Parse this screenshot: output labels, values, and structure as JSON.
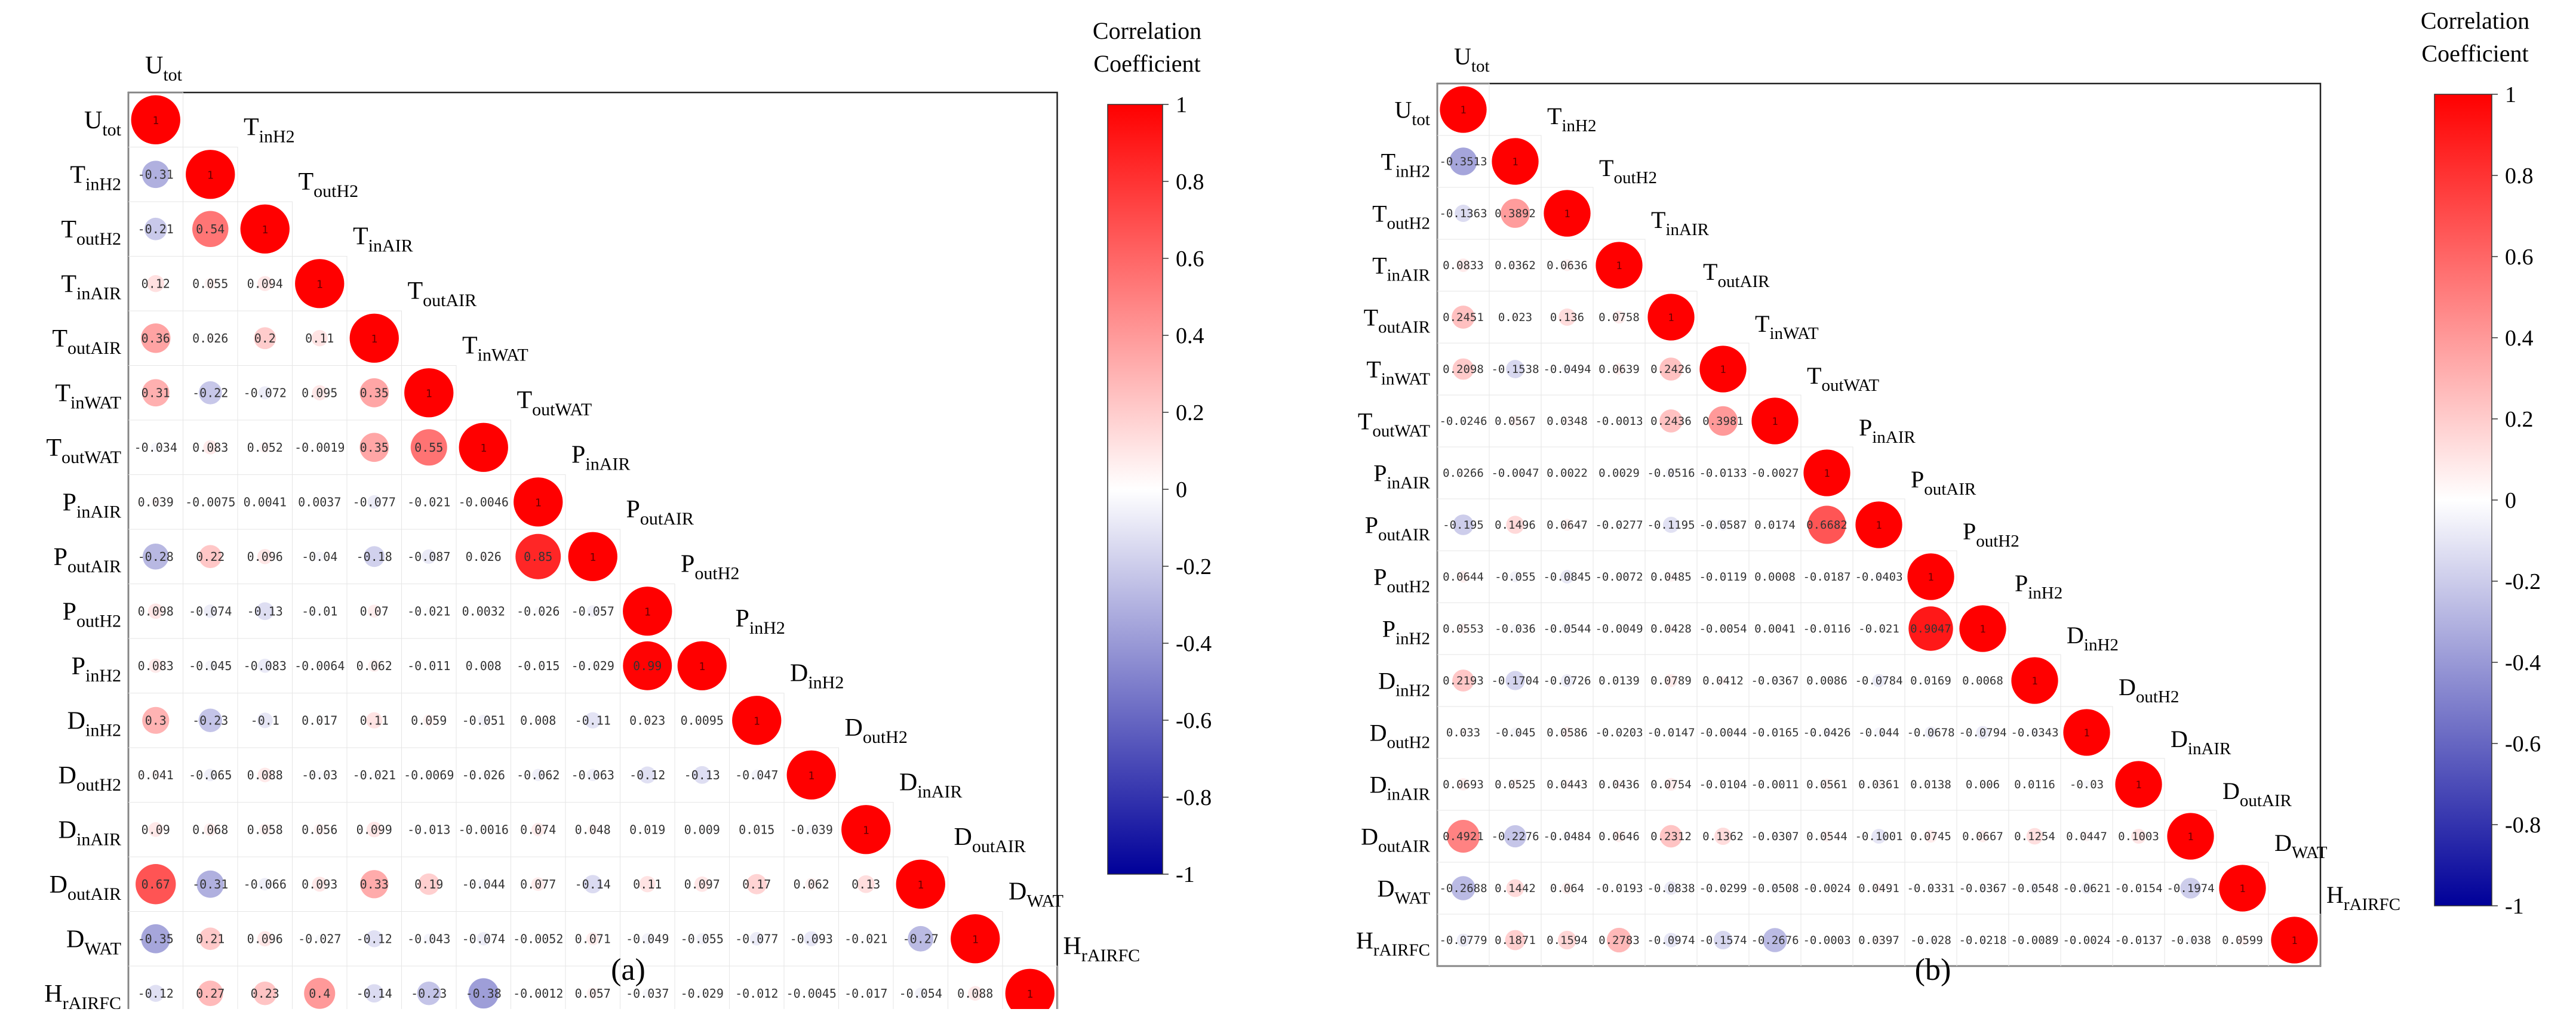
{
  "chart_data": [
    {
      "type": "heatmap",
      "panel_label": "(a)",
      "colorbar_title_line1": "Correlation",
      "colorbar_title_line2": "Coefficient",
      "colorbar_ticks": [
        "1",
        "0.8",
        "0.6",
        "0.4",
        "0.2",
        "0",
        "-0.2",
        "-0.4",
        "-0.6",
        "-0.8",
        "-1"
      ],
      "colorbar_range": [
        -1,
        1
      ],
      "colors": {
        "positive": "#ff0000",
        "zero": "#ffffff",
        "negative": "#000099"
      },
      "variables": [
        {
          "base": "U",
          "sub": "tot"
        },
        {
          "base": "T",
          "sub": "inH2"
        },
        {
          "base": "T",
          "sub": "outH2"
        },
        {
          "base": "T",
          "sub": "inAIR"
        },
        {
          "base": "T",
          "sub": "outAIR"
        },
        {
          "base": "T",
          "sub": "inWAT"
        },
        {
          "base": "T",
          "sub": "outWAT"
        },
        {
          "base": "P",
          "sub": "inAIR"
        },
        {
          "base": "P",
          "sub": "outAIR"
        },
        {
          "base": "P",
          "sub": "outH2"
        },
        {
          "base": "P",
          "sub": "inH2"
        },
        {
          "base": "D",
          "sub": "inH2"
        },
        {
          "base": "D",
          "sub": "outH2"
        },
        {
          "base": "D",
          "sub": "inAIR"
        },
        {
          "base": "D",
          "sub": "outAIR"
        },
        {
          "base": "D",
          "sub": "WAT"
        },
        {
          "base": "H",
          "sub": "rAIRFC"
        }
      ],
      "diagonal_label": "1",
      "matrix": [
        [
          "-0.31"
        ],
        [
          "-0.21",
          "0.54"
        ],
        [
          "0.12",
          "0.055",
          "0.094"
        ],
        [
          "0.36",
          "0.026",
          "0.2",
          "0.11"
        ],
        [
          "0.31",
          "-0.22",
          "-0.072",
          "0.095",
          "0.35"
        ],
        [
          "-0.034",
          "0.083",
          "0.052",
          "-0.0019",
          "0.35",
          "0.55"
        ],
        [
          "0.039",
          "-0.0075",
          "0.0041",
          "0.0037",
          "-0.077",
          "-0.021",
          "-0.0046"
        ],
        [
          "-0.28",
          "0.22",
          "0.096",
          "-0.04",
          "-0.18",
          "-0.087",
          "0.026",
          "0.85"
        ],
        [
          "0.098",
          "-0.074",
          "-0.13",
          "-0.01",
          "0.07",
          "-0.021",
          "0.0032",
          "-0.026",
          "-0.057"
        ],
        [
          "0.083",
          "-0.045",
          "-0.083",
          "-0.0064",
          "0.062",
          "-0.011",
          "0.008",
          "-0.015",
          "-0.029",
          "0.99"
        ],
        [
          "0.3",
          "-0.23",
          "-0.1",
          "0.017",
          "0.11",
          "0.059",
          "-0.051",
          "0.008",
          "-0.11",
          "0.023",
          "0.0095"
        ],
        [
          "0.041",
          "-0.065",
          "0.088",
          "-0.03",
          "-0.021",
          "-0.0069",
          "-0.026",
          "-0.062",
          "-0.063",
          "-0.12",
          "-0.13",
          "-0.047"
        ],
        [
          "0.09",
          "0.068",
          "0.058",
          "0.056",
          "0.099",
          "-0.013",
          "-0.0016",
          "0.074",
          "0.048",
          "0.019",
          "0.009",
          "0.015",
          "-0.039"
        ],
        [
          "0.67",
          "-0.31",
          "-0.066",
          "0.093",
          "0.33",
          "0.19",
          "-0.044",
          "0.077",
          "-0.14",
          "0.11",
          "0.097",
          "0.17",
          "0.062",
          "0.13"
        ],
        [
          "-0.35",
          "0.21",
          "0.096",
          "-0.027",
          "-0.12",
          "-0.043",
          "-0.074",
          "-0.0052",
          "0.071",
          "-0.049",
          "-0.055",
          "-0.077",
          "-0.093",
          "-0.021",
          "-0.27"
        ],
        [
          "-0.12",
          "0.27",
          "0.23",
          "0.4",
          "-0.14",
          "-0.23",
          "-0.38",
          "-0.0012",
          "0.057",
          "-0.037",
          "-0.029",
          "-0.012",
          "-0.0045",
          "-0.017",
          "-0.054",
          "0.088"
        ]
      ]
    },
    {
      "type": "heatmap",
      "panel_label": "(b)",
      "colorbar_title_line1": "Correlation",
      "colorbar_title_line2": "Coefficient",
      "colorbar_ticks": [
        "1",
        "0.8",
        "0.6",
        "0.4",
        "0.2",
        "0",
        "-0.2",
        "-0.4",
        "-0.6",
        "-0.8",
        "-1"
      ],
      "colorbar_range": [
        -1,
        1
      ],
      "colors": {
        "positive": "#ff0000",
        "zero": "#ffffff",
        "negative": "#000099"
      },
      "variables": [
        {
          "base": "U",
          "sub": "tot"
        },
        {
          "base": "T",
          "sub": "inH2"
        },
        {
          "base": "T",
          "sub": "outH2"
        },
        {
          "base": "T",
          "sub": "inAIR"
        },
        {
          "base": "T",
          "sub": "outAIR"
        },
        {
          "base": "T",
          "sub": "inWAT"
        },
        {
          "base": "T",
          "sub": "outWAT"
        },
        {
          "base": "P",
          "sub": "inAIR"
        },
        {
          "base": "P",
          "sub": "outAIR"
        },
        {
          "base": "P",
          "sub": "outH2"
        },
        {
          "base": "P",
          "sub": "inH2"
        },
        {
          "base": "D",
          "sub": "inH2"
        },
        {
          "base": "D",
          "sub": "outH2"
        },
        {
          "base": "D",
          "sub": "inAIR"
        },
        {
          "base": "D",
          "sub": "outAIR"
        },
        {
          "base": "D",
          "sub": "WAT"
        },
        {
          "base": "H",
          "sub": "rAIRFC"
        }
      ],
      "diagonal_label": "1",
      "matrix": [
        [
          "-0.3513"
        ],
        [
          "-0.1363",
          "0.3892"
        ],
        [
          "0.0833",
          "0.0362",
          "0.0636"
        ],
        [
          "0.2451",
          "0.023",
          "0.136",
          "0.0758"
        ],
        [
          "0.2098",
          "-0.1538",
          "-0.0494",
          "0.0639",
          "0.2426"
        ],
        [
          "-0.0246",
          "0.0567",
          "0.0348",
          "-0.0013",
          "0.2436",
          "0.3981"
        ],
        [
          "0.0266",
          "-0.0047",
          "0.0022",
          "0.0029",
          "-0.0516",
          "-0.0133",
          "-0.0027"
        ],
        [
          "-0.195",
          "0.1496",
          "0.0647",
          "-0.0277",
          "-0.1195",
          "-0.0587",
          "0.0174",
          "0.6682"
        ],
        [
          "0.0644",
          "-0.055",
          "-0.0845",
          "-0.0072",
          "0.0485",
          "-0.0119",
          "0.0008",
          "-0.0187",
          "-0.0403"
        ],
        [
          "0.0553",
          "-0.036",
          "-0.0544",
          "-0.0049",
          "0.0428",
          "-0.0054",
          "0.0041",
          "-0.0116",
          "-0.021",
          "0.9047"
        ],
        [
          "0.2193",
          "-0.1704",
          "-0.0726",
          "0.0139",
          "0.0789",
          "0.0412",
          "-0.0367",
          "0.0086",
          "-0.0784",
          "0.0169",
          "0.0068"
        ],
        [
          "0.033",
          "-0.045",
          "0.0586",
          "-0.0203",
          "-0.0147",
          "-0.0044",
          "-0.0165",
          "-0.0426",
          "-0.044",
          "-0.0678",
          "-0.0794",
          "-0.0343"
        ],
        [
          "0.0693",
          "0.0525",
          "0.0443",
          "0.0436",
          "0.0754",
          "-0.0104",
          "-0.0011",
          "0.0561",
          "0.0361",
          "0.0138",
          "0.006",
          "0.0116",
          "-0.03"
        ],
        [
          "0.4921",
          "-0.2276",
          "-0.0484",
          "0.0646",
          "0.2312",
          "0.1362",
          "-0.0307",
          "0.0544",
          "-0.1001",
          "0.0745",
          "0.0667",
          "0.1254",
          "0.0447",
          "0.1003"
        ],
        [
          "-0.2688",
          "0.1442",
          "0.064",
          "-0.0193",
          "-0.0838",
          "-0.0299",
          "-0.0508",
          "-0.0024",
          "0.0491",
          "-0.0331",
          "-0.0367",
          "-0.0548",
          "-0.0621",
          "-0.0154",
          "-0.1974"
        ],
        [
          "-0.0779",
          "0.1871",
          "0.1594",
          "0.2783",
          "-0.0974",
          "-0.1574",
          "-0.2676",
          "-0.0003",
          "0.0397",
          "-0.028",
          "-0.0218",
          "-0.0089",
          "-0.0024",
          "-0.0137",
          "-0.038",
          "0.0599"
        ]
      ]
    }
  ]
}
